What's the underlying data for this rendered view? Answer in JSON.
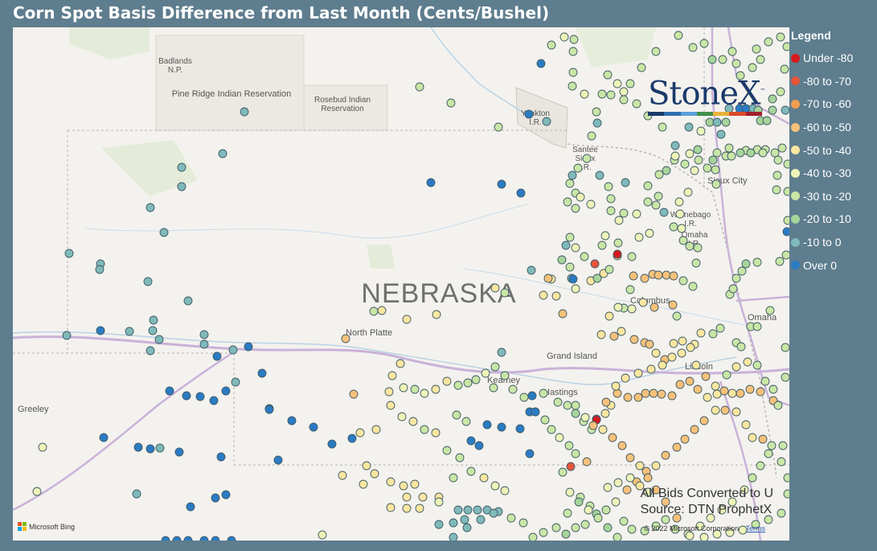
{
  "title": "Corn Spot Basis Difference from Last Month (Cents/Bushel)",
  "legend": {
    "title": "Legend",
    "items": [
      {
        "label": "Under -80",
        "color": "#d7191c"
      },
      {
        "label": "-80 to -70",
        "color": "#e5553a"
      },
      {
        "label": "-70 to -60",
        "color": "#f29e4c"
      },
      {
        "label": "-60 to -50",
        "color": "#f7c17a"
      },
      {
        "label": "-50 to -40",
        "color": "#fbe6a0"
      },
      {
        "label": "-40 to -30",
        "color": "#eef4b8"
      },
      {
        "label": "-30 to -20",
        "color": "#c9e6a6"
      },
      {
        "label": "-20 to -10",
        "color": "#a6d49a"
      },
      {
        "label": "-10 to 0",
        "color": "#7fb9b9"
      },
      {
        "label": "Over 0",
        "color": "#2b7bc4"
      }
    ]
  },
  "logo": {
    "text": "StoneX",
    "trademark": "™",
    "bar_colors": [
      "#1a3a6b",
      "#2f6fb0",
      "#5aa0d8",
      "#3f8f4a",
      "#e8b23a",
      "#d94a2c",
      "#a0202a"
    ]
  },
  "map": {
    "state_label": "NEBRASKA",
    "places": [
      {
        "name": "Badlands\nN.P."
      },
      {
        "name": "Pine Ridge Indian Reservation"
      },
      {
        "name": "Rosebud Indian\nReservation"
      },
      {
        "name": "Yankton\nI.R."
      },
      {
        "name": "Santee\nSioux\nI.R."
      },
      {
        "name": "Sioux City"
      },
      {
        "name": "Winnebago\nI.R."
      },
      {
        "name": "Omaha\nI.R."
      },
      {
        "name": "Columbus"
      },
      {
        "name": "Omaha"
      },
      {
        "name": "North Platte"
      },
      {
        "name": "Grand Island"
      },
      {
        "name": "Kearney"
      },
      {
        "name": "Hastings"
      },
      {
        "name": "Lincoln"
      },
      {
        "name": "Greeley"
      }
    ]
  },
  "credits": {
    "line1": "All Bids Converted to U",
    "line2": "Source: DTN ProphetX"
  },
  "bing": {
    "label": "Microsoft Bing"
  },
  "copyright": {
    "text": "© 2022 Microsoft Corporation",
    "terms": "Terms"
  }
}
